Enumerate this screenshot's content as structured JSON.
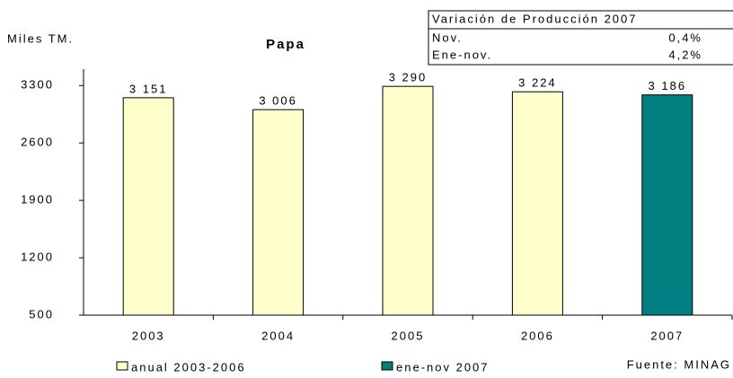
{
  "chart_data": {
    "type": "bar",
    "title": "Papa",
    "y_label": "Miles TM.",
    "source": "Fuente: MINAG",
    "categories": [
      "2003",
      "2004",
      "2005",
      "2006",
      "2007"
    ],
    "series": [
      {
        "name": "anual 2003-2006",
        "color": "#ffffcc",
        "values": [
          3151,
          3006,
          3290,
          3224,
          null
        ],
        "value_labels": [
          "3 151",
          "3 006",
          "3 290",
          "3 224",
          null
        ]
      },
      {
        "name": "ene-nov 2007",
        "color": "#008080",
        "values": [
          null,
          null,
          null,
          null,
          3186
        ],
        "value_labels": [
          null,
          null,
          null,
          null,
          "3 186"
        ]
      }
    ],
    "ylim": [
      500,
      3500
    ],
    "yticks": [
      500,
      1200,
      1900,
      2600,
      3300
    ],
    "grid": false,
    "info_box": {
      "title": "Variación de Producción 2007",
      "rows": [
        [
          "Nov.",
          "0,4%"
        ],
        [
          "Ene-nov.",
          "4,2%"
        ]
      ]
    }
  }
}
